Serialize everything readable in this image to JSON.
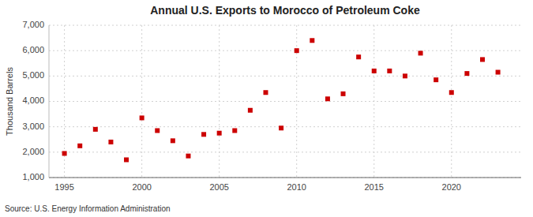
{
  "chart_data": {
    "type": "scatter",
    "title": "Annual U.S. Exports to Morocco of Petroleum Coke",
    "y_label": "Thousand Barrels",
    "annotations": [
      "Source: U.S. Energy Information Administration"
    ],
    "x": [
      1995,
      1996,
      1997,
      1998,
      1999,
      2000,
      2001,
      2002,
      2003,
      2004,
      2005,
      2006,
      2007,
      2008,
      2009,
      2010,
      2011,
      2012,
      2013,
      2014,
      2015,
      2016,
      2017,
      2018,
      2019,
      2020,
      2021,
      2022,
      2023
    ],
    "values": [
      1950,
      2250,
      2900,
      2400,
      1700,
      3350,
      2850,
      2450,
      1850,
      2700,
      2750,
      2850,
      3650,
      4350,
      2950,
      6000,
      6400,
      4100,
      4300,
      5750,
      5200,
      5200,
      5000,
      5900,
      4850,
      4350,
      5100,
      5650,
      5150
    ],
    "color": "#cc0000",
    "marker": "square",
    "xlim": [
      1994.0,
      2024.5
    ],
    "xticks": [
      1995,
      2000,
      2005,
      2010,
      2015,
      2020
    ],
    "ylim": [
      1000,
      7000
    ],
    "yticks": [
      {
        "value": 1000,
        "label": "1,000"
      },
      {
        "value": 2000,
        "label": "2,000"
      },
      {
        "value": 3000,
        "label": "3,000"
      },
      {
        "value": 4000,
        "label": "4,000"
      },
      {
        "value": 5000,
        "label": "5,000"
      },
      {
        "value": 6000,
        "label": "6,000"
      },
      {
        "value": 7000,
        "label": "7,000"
      }
    ],
    "grid": true
  }
}
